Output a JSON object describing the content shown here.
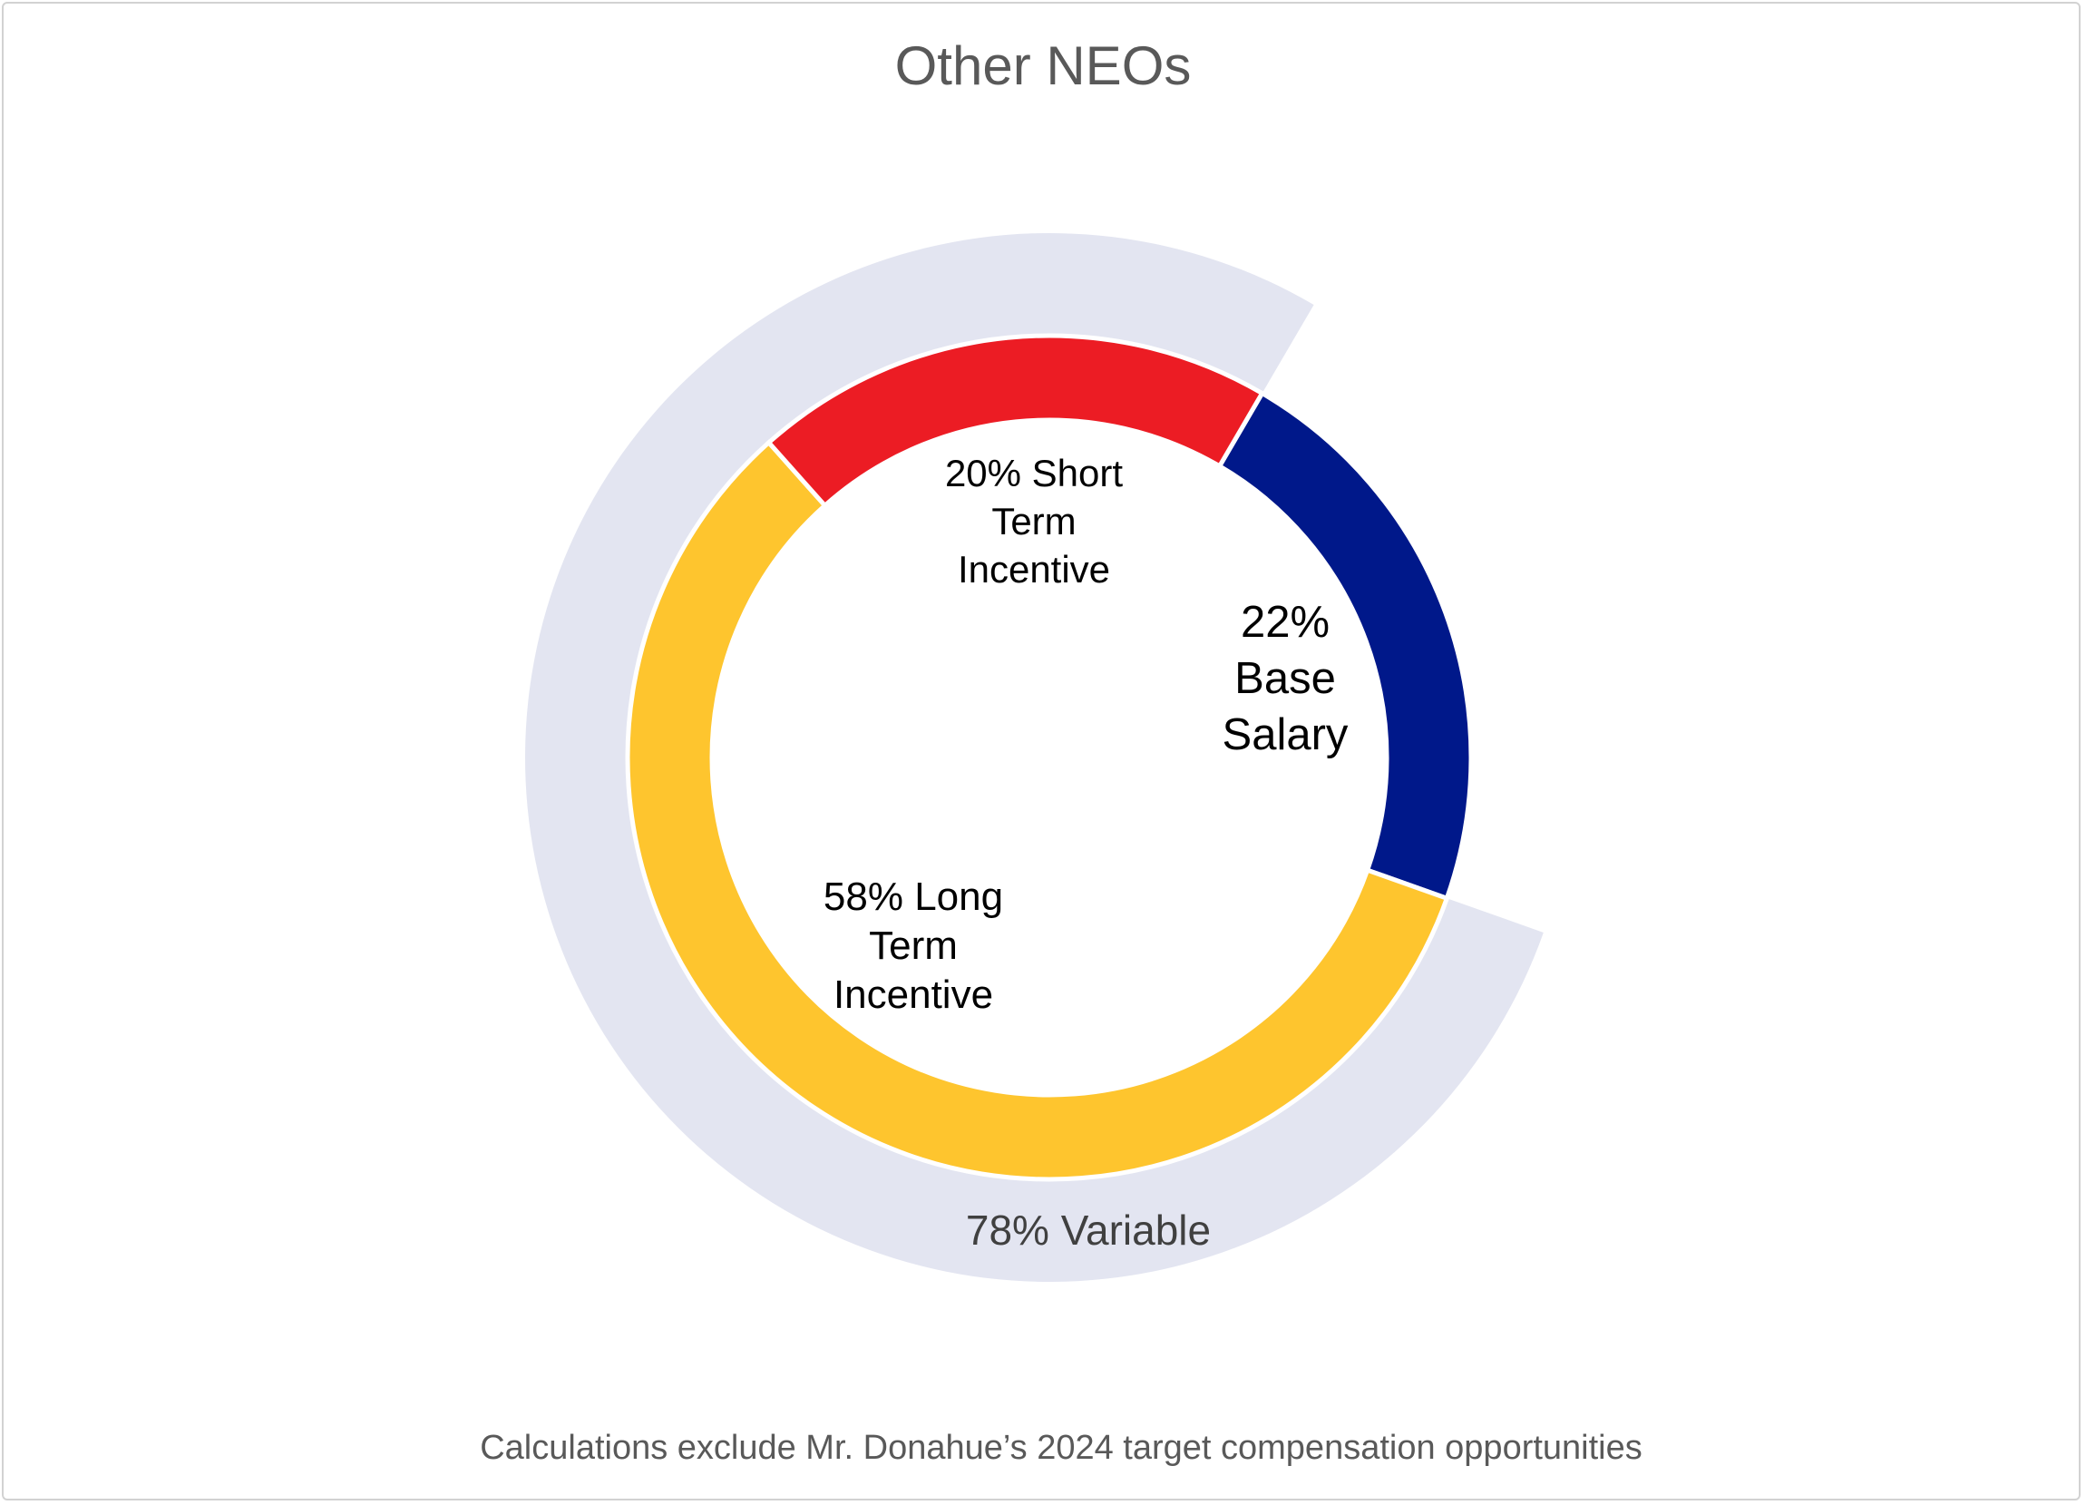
{
  "chart_data": {
    "type": "pie",
    "title": "Other NEOs",
    "footnote": "Calculations exclude Mr. Donahue’s 2024 target compensation opportunities",
    "slices": [
      {
        "value": 22,
        "label_lines": [
          "22%",
          "Base",
          "Salary"
        ],
        "color": "#00188a"
      },
      {
        "value": 58,
        "label_lines": [
          "58% Long",
          "Term",
          "Incentive"
        ],
        "color": "#fec52e"
      },
      {
        "value": 20,
        "label_lines": [
          "20% Short",
          "Term",
          "Incentive"
        ],
        "color": "#ec1c24"
      }
    ],
    "outer_band": {
      "value": 78,
      "label": "78% Variable",
      "color": "#e3e5f1",
      "covers_slices": [
        1,
        2
      ]
    }
  }
}
